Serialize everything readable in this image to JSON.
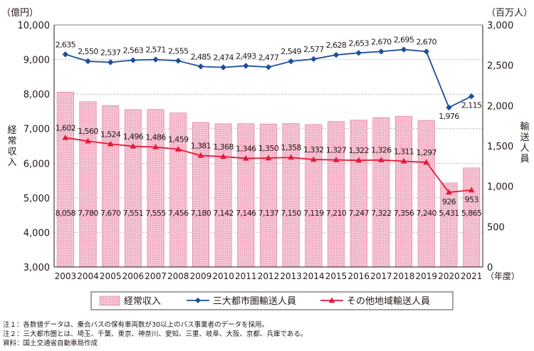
{
  "chart_data": {
    "type": "bar",
    "categories": [
      "2003",
      "2004",
      "2005",
      "2006",
      "2007",
      "2008",
      "2009",
      "2010",
      "2011",
      "2012",
      "2013",
      "2014",
      "2015",
      "2016",
      "2017",
      "2018",
      "2019",
      "2020",
      "2021"
    ],
    "series": [
      {
        "name": "経常収入",
        "type": "bar",
        "axis": "left",
        "values": [
          8058,
          7780,
          7670,
          7551,
          7555,
          7456,
          7180,
          7142,
          7146,
          7137,
          7150,
          7119,
          7210,
          7247,
          7322,
          7356,
          7240,
          5431,
          5865
        ]
      },
      {
        "name": "三大都市圏輸送人員",
        "type": "line",
        "axis": "right",
        "values": [
          2635,
          2550,
          2537,
          2563,
          2571,
          2555,
          2485,
          2474,
          2493,
          2477,
          2549,
          2577,
          2628,
          2653,
          2670,
          2695,
          2670,
          1976,
          2115
        ]
      },
      {
        "name": "その他地域輸送人員",
        "type": "line",
        "axis": "right",
        "values": [
          1602,
          1560,
          1524,
          1496,
          1486,
          1459,
          1381,
          1368,
          1346,
          1350,
          1358,
          1332,
          1327,
          1322,
          1326,
          1311,
          1297,
          926,
          953
        ]
      }
    ],
    "ylabel_left": "経常収入",
    "ylabel_right": "輸送人員",
    "unit_left": "（億円）",
    "unit_right": "（百万人）",
    "xunit": "（年度）",
    "ylim_left": [
      3000,
      10000
    ],
    "ylim_right": [
      0,
      3000
    ],
    "yticks_left": [
      3000,
      4000,
      5000,
      6000,
      7000,
      8000,
      9000,
      10000
    ],
    "yticks_right": [
      0,
      500,
      1000,
      1500,
      2000,
      2500,
      3000
    ],
    "grid": "dashed horizontal",
    "legend_position": "bottom",
    "colors": {
      "bar_fill": "#f6c4d4",
      "bar_stroke": "#e07b9c",
      "line_metro": "#1f4e9c",
      "line_other": "#e5193a"
    }
  },
  "notes": {
    "note1": "注１：各数値データは、乗合バスの保有車両数が30以上のバス事業者のデータを採用。",
    "note2": "注２：三大都市圏とは、埼玉、千葉、東京、神奈川、愛知、三重、岐阜、大阪、京都、兵庫である。",
    "note3": "資料：国土交通省自動車局作成"
  }
}
